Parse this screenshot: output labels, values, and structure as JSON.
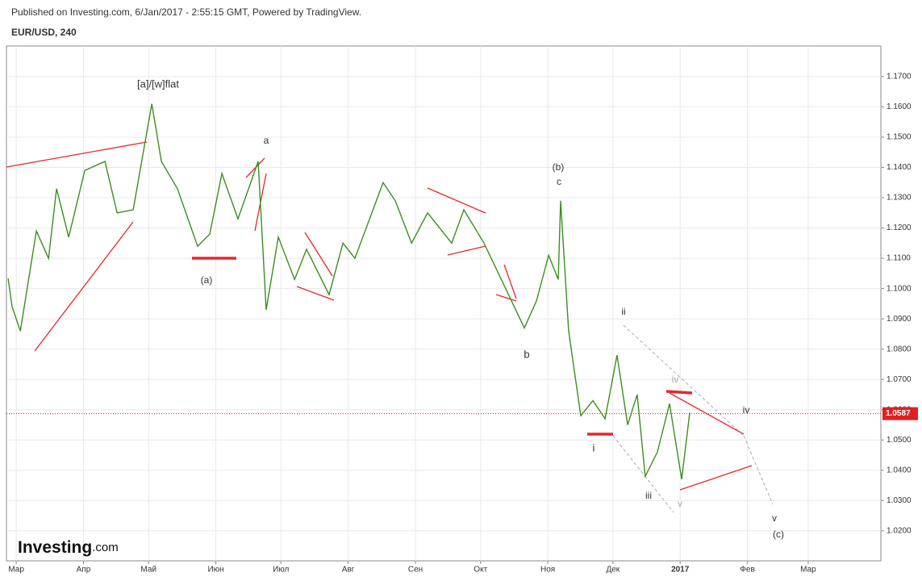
{
  "brand": {
    "name": "Investing",
    "suffix": ".com"
  },
  "chart_data": {
    "type": "line",
    "subtitle": "Published on Investing.com, 6/Jan/2017 - 2:55:15 GMT, Powered by TradingView.",
    "title": "EUR/USD, 240",
    "color": "#3a8f1e",
    "x": [
      -3.7,
      -1.9,
      1.9,
      9.3,
      14.9,
      18.6,
      24.2,
      31.6,
      40.9,
      46.5,
      53.9,
      62.5,
      66.9,
      74.3,
      83.6,
      89.2,
      94.8,
      102.2,
      111.5,
      115.2,
      120.8,
      128.3,
      133.8,
      144.2,
      150.6,
      156.1,
      169.1,
      174.7,
      182.2,
      189.6,
      200.7,
      206.3,
      215.6,
      224.9,
      234.2,
      239.8,
      245.4,
      249.8,
      250.9,
      254.6,
      260.2,
      265.8,
      271.4,
      276.9,
      281.8,
      286.2,
      289.9,
      295.5,
      301.1,
      306.7,
      310.4
    ],
    "values": [
      1.1033,
      1.094,
      1.086,
      1.119,
      1.11,
      1.133,
      1.117,
      1.139,
      1.142,
      1.125,
      1.126,
      1.161,
      1.142,
      1.133,
      1.114,
      1.118,
      1.138,
      1.123,
      1.142,
      1.093,
      1.117,
      1.103,
      1.113,
      1.098,
      1.115,
      1.11,
      1.135,
      1.129,
      1.115,
      1.125,
      1.115,
      1.126,
      1.115,
      1.101,
      1.087,
      1.096,
      1.111,
      1.103,
      1.129,
      1.086,
      1.058,
      1.063,
      1.057,
      1.078,
      1.055,
      1.065,
      1.038,
      1.046,
      1.062,
      1.037,
      1.059
    ],
    "last_price": 1.0587,
    "last_price_color": "#e02020",
    "xlim": [
      -4.5,
      398.5
    ],
    "xticks": [
      {
        "value": 0,
        "label": "Мар"
      },
      {
        "value": 31,
        "label": "Апр"
      },
      {
        "value": 61,
        "label": "Май"
      },
      {
        "value": 92,
        "label": "Июн"
      },
      {
        "value": 122,
        "label": "Июл"
      },
      {
        "value": 153,
        "label": "Авг"
      },
      {
        "value": 184,
        "label": "Сен"
      },
      {
        "value": 214,
        "label": "Окт"
      },
      {
        "value": 245,
        "label": "Ноя"
      },
      {
        "value": 275,
        "label": "Дек"
      },
      {
        "value": 306,
        "label": "2017"
      },
      {
        "value": 337,
        "label": "Фев"
      },
      {
        "value": 365,
        "label": "Мар"
      }
    ],
    "ylim": [
      1.0101,
      1.1801
    ],
    "yticks": [
      {
        "value": 1.02,
        "label": "1.0200"
      },
      {
        "value": 1.03,
        "label": "1.0300"
      },
      {
        "value": 1.04,
        "label": "1.0400"
      },
      {
        "value": 1.05,
        "label": "1.0500"
      },
      {
        "value": 1.06,
        "label": "1.0600"
      },
      {
        "value": 1.07,
        "label": "1.0700"
      },
      {
        "value": 1.08,
        "label": "1.0800"
      },
      {
        "value": 1.09,
        "label": "1.0900"
      },
      {
        "value": 1.1,
        "label": "1.1000"
      },
      {
        "value": 1.11,
        "label": "1.1100"
      },
      {
        "value": 1.12,
        "label": "1.1200"
      },
      {
        "value": 1.13,
        "label": "1.1300"
      },
      {
        "value": 1.14,
        "label": "1.1400"
      },
      {
        "value": 1.15,
        "label": "1.1500"
      },
      {
        "value": 1.16,
        "label": "1.1600"
      },
      {
        "value": 1.17,
        "label": "1.1700"
      }
    ],
    "grid": true,
    "annotations": [
      "[a]/[w]flat",
      "a",
      "(a)",
      "(b)",
      "c",
      "b",
      "ii",
      "i",
      "iv",
      "iii",
      "v",
      "iv",
      "v",
      "(c)"
    ]
  }
}
